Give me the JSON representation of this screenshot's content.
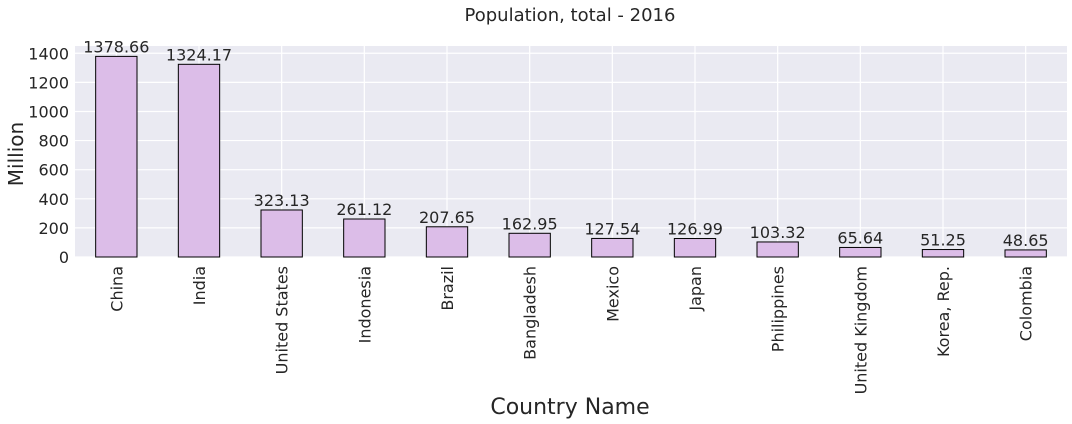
{
  "chart_data": {
    "type": "bar",
    "title": "Population, total - 2016",
    "xlabel": "Country Name",
    "ylabel": "Million",
    "categories": [
      "China",
      "India",
      "United States",
      "Indonesia",
      "Brazil",
      "Bangladesh",
      "Mexico",
      "Japan",
      "Philippines",
      "United Kingdom",
      "Korea, Rep.",
      "Colombia"
    ],
    "values": [
      1378.66,
      1324.17,
      323.13,
      261.12,
      207.65,
      162.95,
      127.54,
      126.99,
      103.32,
      65.64,
      51.25,
      48.65
    ],
    "value_labels": [
      "1378.66",
      "1324.17",
      "323.13",
      "261.12",
      "207.65",
      "162.95",
      "127.54",
      "126.99",
      "103.32",
      "65.64",
      "51.25",
      "48.65"
    ],
    "ylim": [
      0,
      1450
    ],
    "yticks": [
      0,
      200,
      400,
      600,
      800,
      1000,
      1200,
      1400
    ],
    "grid": true,
    "bar_color": "#dcbde8",
    "bar_edge_color": "#000000",
    "background_color": "#eaeaf2",
    "grid_color": "#ffffff"
  }
}
